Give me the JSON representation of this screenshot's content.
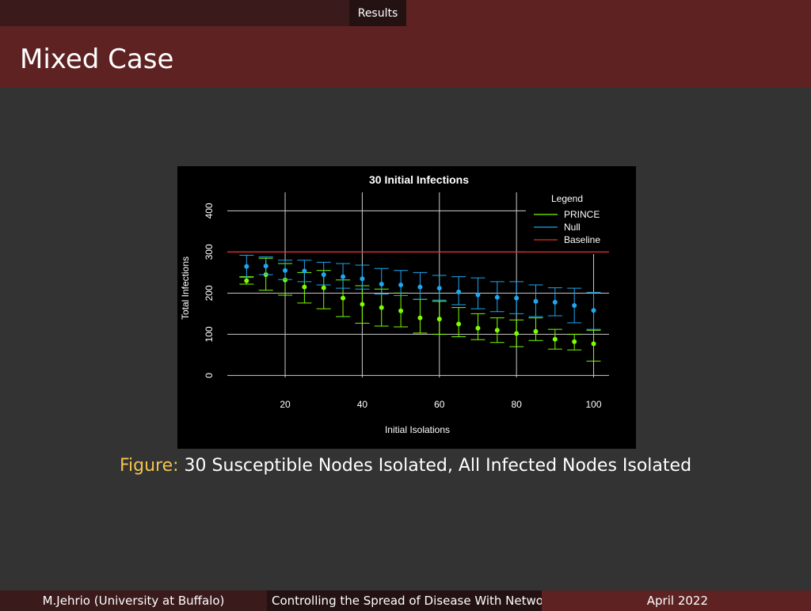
{
  "headline": {
    "section": "Results"
  },
  "frame": {
    "title": "Mixed Case"
  },
  "figure": {
    "caption_label": "Figure:",
    "caption_text": "30 Susceptible Nodes Isolated, All Infected Nodes Isolated"
  },
  "footer": {
    "author": "M.Jehrio  (University at Buffalo)",
    "talk_title": "Controlling the Spread of Disease With Netwo",
    "date": "April 2022"
  },
  "colors": {
    "prince": "#7cfc00",
    "null": "#1ea7f0",
    "baseline": "#e03030",
    "header_dark": "#3a1a1b",
    "header_red": "#5e2222",
    "caption_label": "#f2c44e"
  },
  "chart_data": {
    "type": "scatter",
    "title": "30 Initial Infections",
    "xlabel": "Initial Isolations",
    "ylabel": "Total Infections",
    "xlim": [
      5,
      104
    ],
    "ylim": [
      -5,
      445
    ],
    "xticks": [
      20,
      40,
      60,
      80,
      100
    ],
    "yticks": [
      0,
      100,
      200,
      300,
      400
    ],
    "grid": true,
    "legend": {
      "title": "Legend",
      "placement": "top-right",
      "entries": [
        "PRINCE",
        "Null",
        "Baseline"
      ]
    },
    "baseline": 300,
    "series": [
      {
        "name": "PRINCE",
        "x": [
          10,
          15,
          20,
          25,
          30,
          35,
          40,
          45,
          50,
          55,
          60,
          65,
          70,
          75,
          80,
          85,
          90,
          95,
          100
        ],
        "y": [
          230,
          245,
          232,
          215,
          213,
          188,
          173,
          165,
          157,
          140,
          137,
          125,
          115,
          110,
          102,
          107,
          88,
          82,
          77
        ],
        "low": [
          222,
          207,
          195,
          176,
          162,
          143,
          127,
          120,
          118,
          103,
          100,
          94,
          87,
          80,
          70,
          85,
          64,
          62,
          35
        ],
        "high": [
          240,
          285,
          272,
          250,
          255,
          232,
          218,
          210,
          200,
          185,
          180,
          165,
          150,
          140,
          135,
          140,
          112,
          100,
          110
        ]
      },
      {
        "name": "Null",
        "x": [
          10,
          15,
          20,
          25,
          30,
          35,
          40,
          45,
          50,
          55,
          60,
          65,
          70,
          75,
          80,
          85,
          90,
          95,
          100
        ],
        "y": [
          265,
          266,
          255,
          254,
          245,
          240,
          235,
          222,
          220,
          215,
          212,
          203,
          196,
          190,
          188,
          180,
          178,
          170,
          158
        ],
        "low": [
          238,
          245,
          233,
          228,
          220,
          212,
          210,
          198,
          194,
          185,
          183,
          172,
          162,
          155,
          150,
          143,
          145,
          128,
          112
        ],
        "high": [
          292,
          288,
          280,
          280,
          275,
          272,
          268,
          260,
          255,
          250,
          243,
          240,
          237,
          228,
          228,
          220,
          213,
          212,
          202
        ]
      }
    ]
  }
}
